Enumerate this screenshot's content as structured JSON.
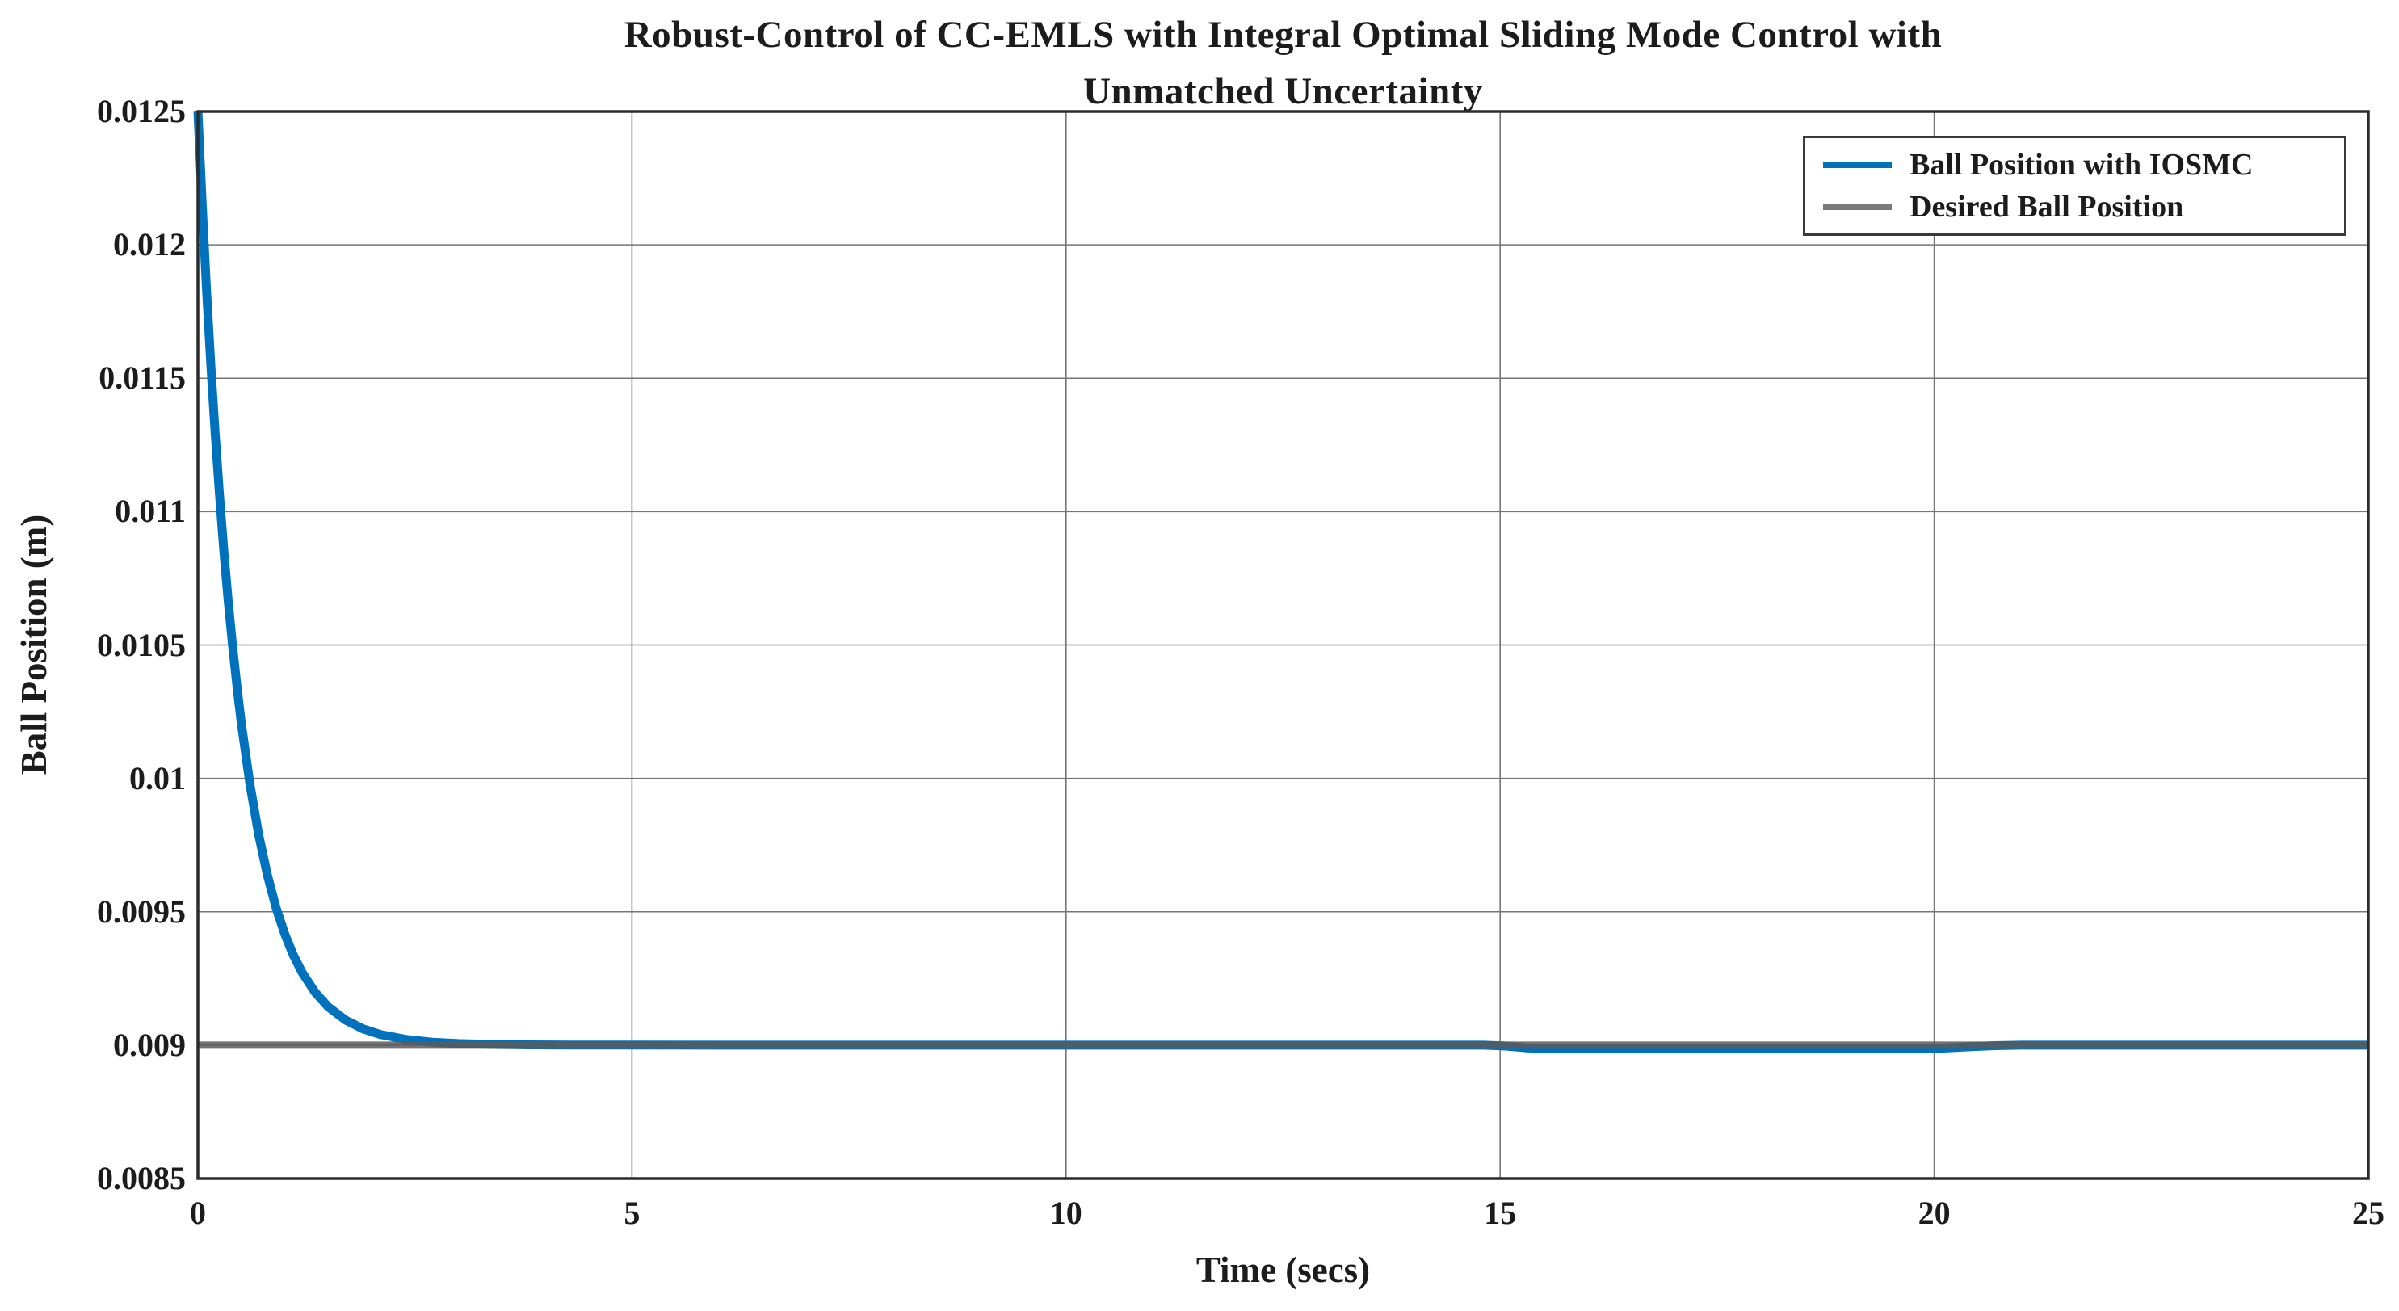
{
  "figure": {
    "title_line1": "Robust-Control of CC-EMLS with Integral Optimal Sliding Mode Control with",
    "title_line2": "Unmatched Uncertainty",
    "xlabel": "Time (secs)",
    "ylabel": "Ball Position (m)"
  },
  "colors": {
    "series_blue": "#0072BD",
    "series_gray": "#5A5A5A",
    "legend_gray_swatch": "#7A7A7A",
    "grid": "#757575",
    "axis_box": "#2B2B2B",
    "text": "#1C1C1C",
    "legend_border": "#3A3A3A",
    "background": "#FFFFFF"
  },
  "legend": {
    "items": [
      {
        "label": "Ball Position with IOSMC",
        "color": "#0072BD"
      },
      {
        "label": "Desired Ball Position",
        "color": "#7A7A7A"
      }
    ]
  },
  "chart_data": {
    "type": "line",
    "title": "Robust-Control of CC-EMLS with Integral Optimal Sliding Mode Control with Unmatched Uncertainty",
    "xlabel": "Time (secs)",
    "ylabel": "Ball Position (m)",
    "xlim": [
      0,
      25
    ],
    "ylim": [
      0.0085,
      0.0125
    ],
    "xticks": [
      0,
      5,
      10,
      15,
      20,
      25
    ],
    "xtick_labels": [
      "0",
      "5",
      "10",
      "15",
      "20",
      "25"
    ],
    "yticks": [
      0.0085,
      0.009,
      0.0095,
      0.01,
      0.0105,
      0.011,
      0.0115,
      0.012,
      0.0125
    ],
    "ytick_labels": [
      "0.0085",
      "0.009",
      "0.0095",
      "0.01",
      "0.0105",
      "0.011",
      "0.0115",
      "0.012",
      "0.0125"
    ],
    "grid": true,
    "legend_position": "top-right",
    "series": [
      {
        "name": "Ball Position with IOSMC",
        "color": "#0072BD",
        "width": 11,
        "opacity": 1,
        "points": [
          [
            0,
            0.0125
          ],
          [
            0.05,
            0.0121469
          ],
          [
            0.1,
            0.0118291
          ],
          [
            0.15,
            0.0115438
          ],
          [
            0.2,
            0.0112869
          ],
          [
            0.25,
            0.0110563
          ],
          [
            0.3,
            0.0108487
          ],
          [
            0.35,
            0.0106618
          ],
          [
            0.4,
            0.0104941
          ],
          [
            0.45,
            0.0103437
          ],
          [
            0.5,
            0.0102079
          ],
          [
            0.6,
            0.0099765
          ],
          [
            0.7,
            0.0097893
          ],
          [
            0.8,
            0.009638
          ],
          [
            0.9,
            0.0095159
          ],
          [
            1.0,
            0.0094169
          ],
          [
            1.1,
            0.0093371
          ],
          [
            1.2,
            0.0092723
          ],
          [
            1.35,
            0.0091981
          ],
          [
            1.5,
            0.0091438
          ],
          [
            1.7,
            0.0090941
          ],
          [
            1.9,
            0.0090615
          ],
          [
            2.1,
            0.0090402
          ],
          [
            2.4,
            0.0090212
          ],
          [
            2.7,
            0.0090112
          ],
          [
            3.0,
            0.0090059
          ],
          [
            3.4,
            0.0090025
          ],
          [
            3.8,
            0.0090011
          ],
          [
            4.3,
            0.0090004
          ],
          [
            5.0,
            0.0090001
          ],
          [
            6.0,
            0.009
          ],
          [
            8.0,
            0.009
          ],
          [
            10.0,
            0.009
          ],
          [
            12.0,
            0.009
          ],
          [
            14.0,
            0.009
          ],
          [
            14.8,
            0.009
          ],
          [
            15.05,
            0.008997
          ],
          [
            15.3,
            0.00899
          ],
          [
            15.55,
            0.0089873
          ],
          [
            16.0,
            0.008987
          ],
          [
            17.0,
            0.008987
          ],
          [
            18.0,
            0.008987
          ],
          [
            19.0,
            0.008987
          ],
          [
            19.8,
            0.0089872
          ],
          [
            20.1,
            0.008989
          ],
          [
            20.4,
            0.008994
          ],
          [
            20.7,
            0.008998
          ],
          [
            21.0,
            0.009
          ],
          [
            22.0,
            0.009
          ],
          [
            23.0,
            0.009
          ],
          [
            24.0,
            0.009
          ],
          [
            25.0,
            0.009
          ]
        ]
      },
      {
        "name": "Desired Ball Position",
        "color": "#5A5A5A",
        "width": 9,
        "opacity": 0.85,
        "points": [
          [
            0,
            0.009
          ],
          [
            25,
            0.009
          ]
        ]
      }
    ]
  }
}
